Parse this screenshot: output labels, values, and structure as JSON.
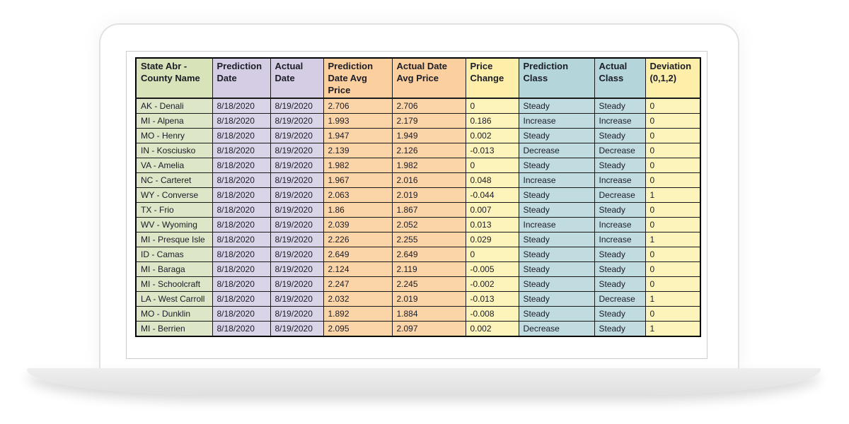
{
  "colors": {
    "text": "#1b1c26",
    "grid": "#1a1a1a",
    "outer_border": "#000000",
    "laptop_frame": "#e2e2e2",
    "laptop_base": "#e5e5e5",
    "screen_bg": "#ffffff"
  },
  "palette": {
    "green": {
      "header": "#d8e3ba",
      "cell": "#dde6c6"
    },
    "lavender": {
      "header": "#d4cde4",
      "cell": "#dad4e8"
    },
    "orange": {
      "header": "#fbcf9e",
      "cell": "#fbd4a8"
    },
    "yellow": {
      "header": "#fdefa9",
      "cell": "#fdf4bc"
    },
    "teal": {
      "header": "#b4d5da",
      "cell": "#c0dce0"
    }
  },
  "table": {
    "columns": [
      {
        "label": "State Abr - County Name",
        "color": "green"
      },
      {
        "label": "Prediction Date",
        "color": "lavender"
      },
      {
        "label": "Actual Date",
        "color": "lavender"
      },
      {
        "label": "Prediction Date Avg Price",
        "color": "orange"
      },
      {
        "label": "Actual Date Avg Price",
        "color": "orange"
      },
      {
        "label": "Price Change",
        "color": "yellow"
      },
      {
        "label": "Prediction Class",
        "color": "teal"
      },
      {
        "label": "Actual Class",
        "color": "teal"
      },
      {
        "label": "Deviation (0,1,2)",
        "color": "yellow"
      }
    ],
    "rows": [
      [
        "AK - Denali",
        "8/18/2020",
        "8/19/2020",
        "2.706",
        "2.706",
        "0",
        "Steady",
        "Steady",
        "0"
      ],
      [
        "MI - Alpena",
        "8/18/2020",
        "8/19/2020",
        "1.993",
        "2.179",
        "0.186",
        "Increase",
        "Increase",
        "0"
      ],
      [
        "MO - Henry",
        "8/18/2020",
        "8/19/2020",
        "1.947",
        "1.949",
        "0.002",
        "Steady",
        "Steady",
        "0"
      ],
      [
        "IN - Kosciusko",
        "8/18/2020",
        "8/19/2020",
        "2.139",
        "2.126",
        "-0.013",
        "Decrease",
        "Decrease",
        "0"
      ],
      [
        "VA - Amelia",
        "8/18/2020",
        "8/19/2020",
        "1.982",
        "1.982",
        "0",
        "Steady",
        "Steady",
        "0"
      ],
      [
        "NC - Carteret",
        "8/18/2020",
        "8/19/2020",
        "1.967",
        "2.016",
        "0.048",
        "Increase",
        "Increase",
        "0"
      ],
      [
        "WY - Converse",
        "8/18/2020",
        "8/19/2020",
        "2.063",
        "2.019",
        "-0.044",
        "Steady",
        "Decrease",
        "1"
      ],
      [
        "TX - Frio",
        "8/18/2020",
        "8/19/2020",
        "1.86",
        "1.867",
        "0.007",
        "Steady",
        "Steady",
        "0"
      ],
      [
        "WV - Wyoming",
        "8/18/2020",
        "8/19/2020",
        "2.039",
        "2.052",
        "0.013",
        "Increase",
        "Increase",
        "0"
      ],
      [
        "MI - Presque Isle",
        "8/18/2020",
        "8/19/2020",
        "2.226",
        "2.255",
        "0.029",
        "Steady",
        "Increase",
        "1"
      ],
      [
        "ID - Camas",
        "8/18/2020",
        "8/19/2020",
        "2.649",
        "2.649",
        "0",
        "Steady",
        "Steady",
        "0"
      ],
      [
        "MI - Baraga",
        "8/18/2020",
        "8/19/2020",
        "2.124",
        "2.119",
        "-0.005",
        "Steady",
        "Steady",
        "0"
      ],
      [
        "MI - Schoolcraft",
        "8/18/2020",
        "8/19/2020",
        "2.247",
        "2.245",
        "-0.002",
        "Steady",
        "Steady",
        "0"
      ],
      [
        "LA - West Carroll",
        "8/18/2020",
        "8/19/2020",
        "2.032",
        "2.019",
        "-0.013",
        "Steady",
        "Decrease",
        "1"
      ],
      [
        "MO - Dunklin",
        "8/18/2020",
        "8/19/2020",
        "1.892",
        "1.884",
        "-0.008",
        "Steady",
        "Steady",
        "0"
      ],
      [
        "MI - Berrien",
        "8/18/2020",
        "8/19/2020",
        "2.095",
        "2.097",
        "0.002",
        "Decrease",
        "Steady",
        "1"
      ]
    ]
  }
}
